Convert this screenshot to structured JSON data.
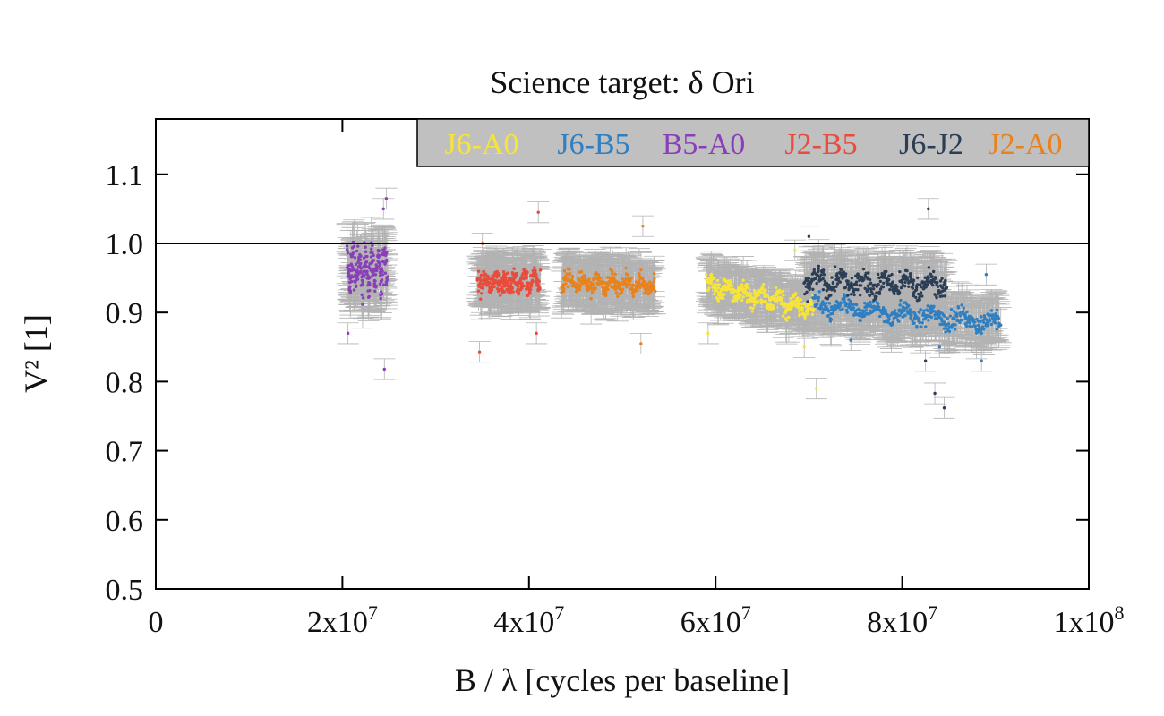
{
  "chart_data": {
    "type": "scatter",
    "title": "Science target: δ Ori",
    "xlabel": "B / λ [cycles per baseline]",
    "ylabel": "V² [1]",
    "xlim": [
      0,
      100000000
    ],
    "ylim": [
      0.5,
      1.18
    ],
    "x_ticks": [
      0,
      20000000,
      40000000,
      60000000,
      80000000,
      100000000
    ],
    "x_tick_labels": [
      {
        "base": "0",
        "exp": ""
      },
      {
        "base": "2x10",
        "exp": "7"
      },
      {
        "base": "4x10",
        "exp": "7"
      },
      {
        "base": "6x10",
        "exp": "7"
      },
      {
        "base": "8x10",
        "exp": "7"
      },
      {
        "base": "1x10",
        "exp": "8"
      }
    ],
    "y_ticks": [
      0.5,
      0.6,
      0.7,
      0.8,
      0.9,
      1.0,
      1.1
    ],
    "y_tick_labels": [
      "0.5",
      "0.6",
      "0.7",
      "0.8",
      "0.9",
      "1.0",
      "1.1"
    ],
    "reference_line": 1.0,
    "error_bar_color": "#b3b3b3",
    "legend_background": "#c0c0c0",
    "legend_position": "top-right",
    "grid": false,
    "series": [
      {
        "name": "J6-A0",
        "color": "#f7e43a",
        "segments": [
          {
            "x0": 59000000,
            "x1": 70500000,
            "y0": 0.94,
            "y1": 0.905,
            "spread": 0.02,
            "err": 0.028,
            "n": 340
          }
        ],
        "outliers": [
          {
            "x": 69500000,
            "y": 0.85
          },
          {
            "x": 70800000,
            "y": 0.79
          },
          {
            "x": 59200000,
            "y": 0.87
          },
          {
            "x": 68500000,
            "y": 0.99
          }
        ]
      },
      {
        "name": "J6-B5",
        "color": "#2f7fc1",
        "segments": [
          {
            "x0": 70500000,
            "x1": 90500000,
            "y0": 0.91,
            "y1": 0.885,
            "spread": 0.018,
            "err": 0.03,
            "n": 420
          }
        ],
        "outliers": [
          {
            "x": 88500000,
            "y": 0.83
          },
          {
            "x": 89000000,
            "y": 0.955
          },
          {
            "x": 74500000,
            "y": 0.86
          },
          {
            "x": 84000000,
            "y": 0.85
          }
        ]
      },
      {
        "name": "B5-A0",
        "color": "#8a3fb8",
        "segments": [
          {
            "x0": 20500000,
            "x1": 24800000,
            "y0": 0.96,
            "y1": 0.965,
            "spread": 0.04,
            "err": 0.03,
            "n": 220
          }
        ],
        "outliers": [
          {
            "x": 24500000,
            "y": 0.818
          },
          {
            "x": 24700000,
            "y": 1.065
          },
          {
            "x": 24400000,
            "y": 1.05
          },
          {
            "x": 20600000,
            "y": 0.87
          }
        ]
      },
      {
        "name": "J2-B5",
        "color": "#e74c3c",
        "segments": [
          {
            "x0": 34500000,
            "x1": 41200000,
            "y0": 0.945,
            "y1": 0.945,
            "spread": 0.022,
            "err": 0.03,
            "n": 260
          }
        ],
        "outliers": [
          {
            "x": 34700000,
            "y": 0.843
          },
          {
            "x": 41000000,
            "y": 1.045
          },
          {
            "x": 40800000,
            "y": 0.87
          },
          {
            "x": 35000000,
            "y": 1.0
          }
        ]
      },
      {
        "name": "J6-J2",
        "color": "#2c3e55",
        "segments": [
          {
            "x0": 69500000,
            "x1": 84800000,
            "y0": 0.945,
            "y1": 0.94,
            "spread": 0.022,
            "err": 0.03,
            "n": 360
          }
        ],
        "outliers": [
          {
            "x": 83500000,
            "y": 0.783
          },
          {
            "x": 84500000,
            "y": 0.762
          },
          {
            "x": 82800000,
            "y": 1.05
          },
          {
            "x": 82500000,
            "y": 0.83
          },
          {
            "x": 70000000,
            "y": 1.01
          }
        ]
      },
      {
        "name": "J2-A0",
        "color": "#e8821e",
        "segments": [
          {
            "x0": 43500000,
            "x1": 53500000,
            "y0": 0.945,
            "y1": 0.94,
            "spread": 0.018,
            "err": 0.03,
            "n": 300
          }
        ],
        "outliers": [
          {
            "x": 52200000,
            "y": 1.025
          },
          {
            "x": 52000000,
            "y": 0.855
          },
          {
            "x": 43800000,
            "y": 0.96
          }
        ]
      }
    ]
  }
}
